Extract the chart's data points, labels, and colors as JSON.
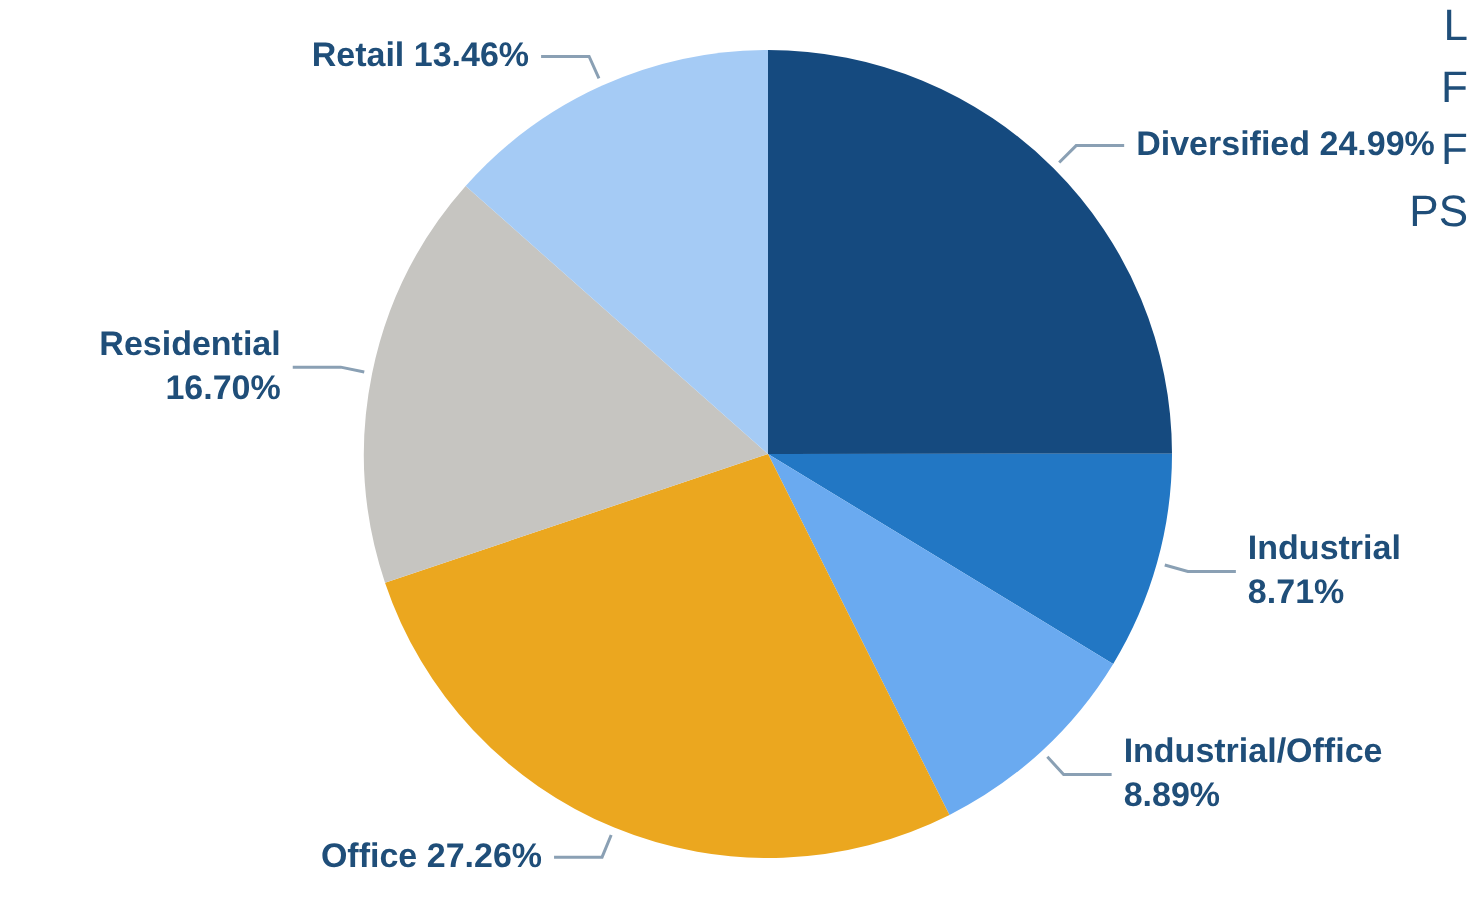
{
  "chart_data": {
    "type": "pie",
    "categories": [
      "Diversified",
      "Industrial",
      "Industrial/Office",
      "Office",
      "Residential",
      "Retail"
    ],
    "values": [
      24.99,
      8.71,
      8.89,
      27.26,
      16.7,
      13.46
    ],
    "value_labels": [
      "24.99%",
      "8.71%",
      "8.89%",
      "27.26%",
      "16.70%",
      "13.46%"
    ],
    "colors": [
      "#154a7f",
      "#2277c4",
      "#6aaaf0",
      "#eba71f",
      "#c6c5c1",
      "#a5cbf5"
    ],
    "annotations": [
      "L",
      "F",
      "F",
      "PS"
    ],
    "legend": false
  }
}
